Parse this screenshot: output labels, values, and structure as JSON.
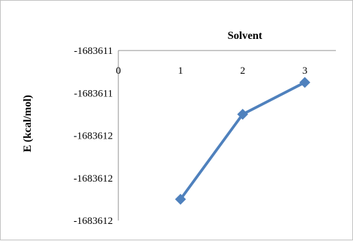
{
  "chart_data": {
    "type": "line",
    "title": "",
    "xlabel": "Solvent",
    "ylabel": "E (kcal/mol)",
    "x": [
      1,
      2,
      3
    ],
    "x_ticks": [
      "0",
      "1",
      "2",
      "3"
    ],
    "xlim": [
      0,
      3.5
    ],
    "y_ticks": [
      "-1683611",
      "-1683611",
      "-1683612",
      "-1683612",
      "-1683612"
    ],
    "series": [
      {
        "name": "",
        "values": [
          -1683611.7,
          -1683611.3,
          -1683611.15
        ]
      }
    ],
    "ylim": [
      -1683611.8,
      -1683611.0
    ],
    "x_axis_position": "top",
    "grid": false,
    "legend": "none",
    "series_color": "#4f81bd",
    "marker": "diamond"
  }
}
